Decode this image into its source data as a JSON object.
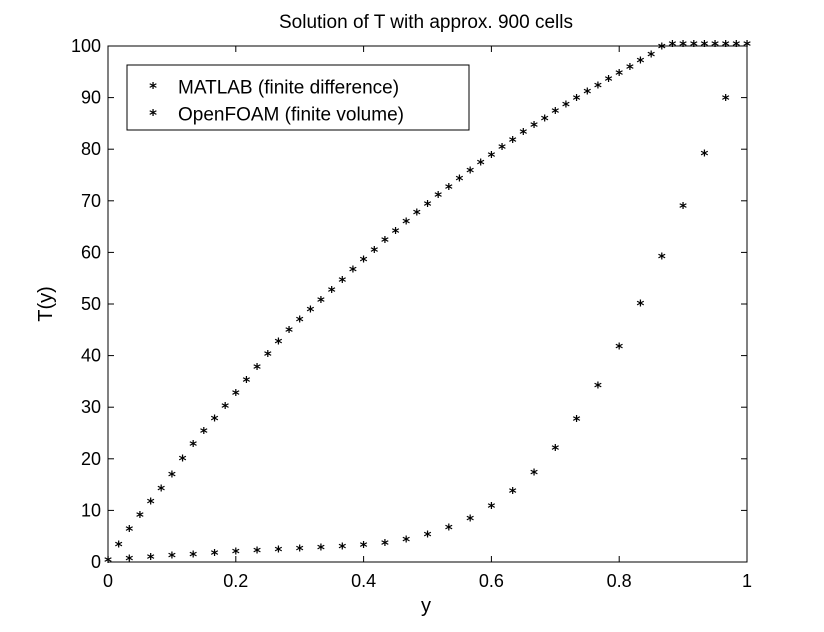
{
  "chart_data": {
    "type": "scatter",
    "title": "Solution of T with approx. 900 cells",
    "xlabel": "y",
    "ylabel": "T(y)",
    "xlim": [
      0,
      1
    ],
    "ylim": [
      0,
      100
    ],
    "xticks": [
      "0",
      "0.2",
      "0.4",
      "0.6",
      "0.8",
      "1"
    ],
    "yticks": [
      "0",
      "10",
      "20",
      "30",
      "40",
      "50",
      "60",
      "70",
      "80",
      "90",
      "100"
    ],
    "grid": false,
    "legend_position": "top-left",
    "series": [
      {
        "name": "MATLAB (finite difference)",
        "color": "#ff0000",
        "marker": "asterisk",
        "x": [
          0.0,
          0.0333,
          0.0667,
          0.1,
          0.1333,
          0.1667,
          0.2,
          0.2333,
          0.2667,
          0.3,
          0.3333,
          0.3667,
          0.4,
          0.4333,
          0.4667,
          0.5,
          0.5333,
          0.5667,
          0.6,
          0.6333,
          0.6667,
          0.7,
          0.7333,
          0.7667,
          0.8,
          0.8333,
          0.8667,
          0.9,
          0.9333,
          0.9667,
          1.0
        ],
        "y": [
          0.0,
          0.3,
          0.6,
          0.9,
          1.1,
          1.4,
          1.6,
          1.8,
          2.0,
          2.2,
          2.4,
          2.6,
          2.9,
          3.3,
          4.0,
          4.9,
          6.3,
          8.0,
          10.5,
          13.4,
          17.0,
          21.7,
          27.3,
          33.8,
          41.4,
          49.7,
          58.8,
          68.6,
          78.8,
          89.5,
          100.0
        ]
      },
      {
        "name": "OpenFOAM (finite volume)",
        "color": "#0000ff",
        "marker": "asterisk",
        "x": [
          0.0167,
          0.0333,
          0.05,
          0.0667,
          0.0833,
          0.1,
          0.1167,
          0.1333,
          0.15,
          0.1667,
          0.1833,
          0.2,
          0.2167,
          0.2333,
          0.25,
          0.2667,
          0.2833,
          0.3,
          0.3167,
          0.3333,
          0.35,
          0.3667,
          0.3833,
          0.4,
          0.4167,
          0.4333,
          0.45,
          0.4667,
          0.4833,
          0.5,
          0.5167,
          0.5333,
          0.55,
          0.5667,
          0.5833,
          0.6,
          0.6167,
          0.6333,
          0.65,
          0.6667,
          0.6833,
          0.7,
          0.7167,
          0.7333,
          0.75,
          0.7667,
          0.7833,
          0.8,
          0.8167,
          0.8333,
          0.85,
          0.8667,
          0.8833,
          0.9,
          0.9167,
          0.9333,
          0.95,
          0.9667,
          0.9833
        ],
        "y": [
          3.0,
          6.0,
          8.7,
          11.3,
          13.9,
          16.6,
          19.7,
          22.5,
          25.0,
          27.4,
          29.8,
          32.4,
          34.9,
          37.4,
          39.9,
          42.3,
          44.6,
          46.6,
          48.5,
          50.4,
          52.3,
          54.3,
          56.3,
          58.2,
          60.1,
          62.0,
          63.8,
          65.6,
          67.3,
          69.0,
          70.7,
          72.3,
          73.9,
          75.5,
          77.0,
          78.5,
          80.0,
          81.4,
          82.9,
          84.3,
          85.6,
          87.0,
          88.3,
          89.5,
          90.8,
          92.0,
          93.2,
          94.4,
          95.5,
          96.8,
          98.0,
          99.5,
          100.0,
          100.0,
          100.0,
          100.0,
          100.0,
          100.0,
          100.0
        ]
      }
    ]
  }
}
